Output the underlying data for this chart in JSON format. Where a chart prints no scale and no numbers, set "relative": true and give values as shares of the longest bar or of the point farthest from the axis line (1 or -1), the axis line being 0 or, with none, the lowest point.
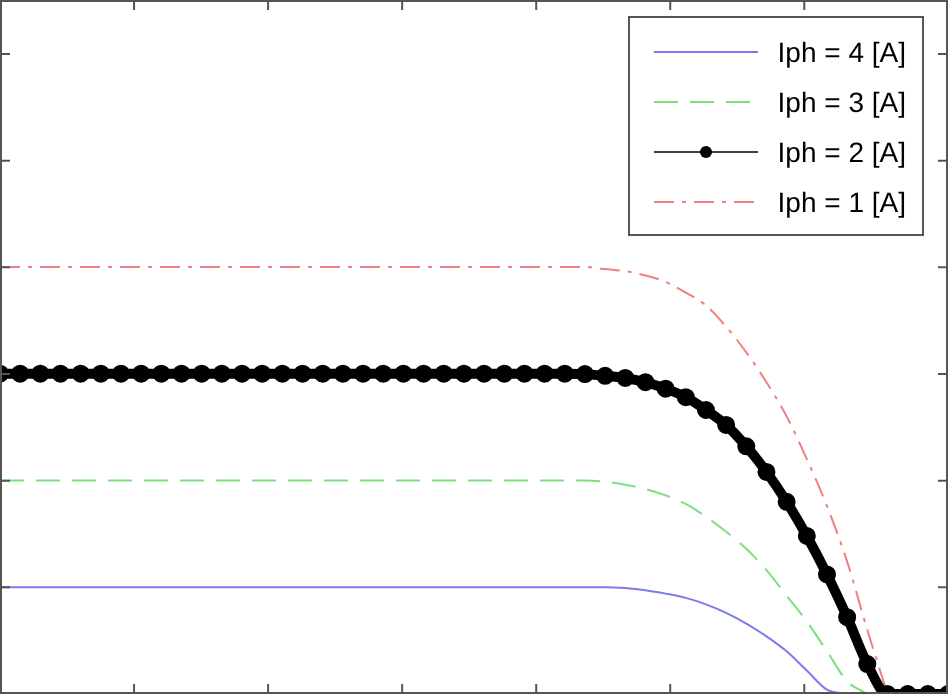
{
  "chart_data": {
    "type": "line",
    "relative": true,
    "tick_labels": false,
    "legend": "top right",
    "categories": [
      null,
      null,
      null,
      null,
      null,
      null,
      null,
      null,
      null,
      null,
      null,
      null,
      null,
      null,
      null,
      null,
      null,
      null,
      null,
      null,
      null,
      null,
      null,
      null,
      null,
      null,
      null,
      null,
      null,
      null,
      null,
      null,
      null,
      null,
      null,
      null,
      null,
      null,
      null,
      null,
      null,
      null,
      null,
      null,
      null,
      null,
      null,
      null
    ],
    "series": [
      {
        "name": "Iph = 4 [A]",
        "color": "#7b7bef",
        "line_style": "solid",
        "values": [
          0.25,
          0.25,
          0.25,
          0.25,
          0.25,
          0.25,
          0.25,
          0.25,
          0.25,
          0.25,
          0.25,
          0.25,
          0.25,
          0.25,
          0.25,
          0.25,
          0.25,
          0.25,
          0.25,
          0.25,
          0.25,
          0.25,
          0.25,
          0.25,
          0.25,
          0.25,
          0.25,
          0.25,
          0.25,
          0.25,
          0.25,
          0.248,
          0.243,
          0.235,
          0.225,
          0.21,
          0.19,
          0.165,
          0.135,
          0.1,
          0.055,
          0.01,
          0,
          null,
          null,
          null,
          null,
          null
        ]
      },
      {
        "name": "Iph = 3 [A]",
        "color": "#7fdf7f",
        "line_style": "dashed",
        "values": [
          0.5,
          0.5,
          0.5,
          0.5,
          0.5,
          0.5,
          0.5,
          0.5,
          0.5,
          0.5,
          0.5,
          0.5,
          0.5,
          0.5,
          0.5,
          0.5,
          0.5,
          0.5,
          0.5,
          0.5,
          0.5,
          0.5,
          0.5,
          0.5,
          0.5,
          0.5,
          0.5,
          0.5,
          0.5,
          0.5,
          0.497,
          0.49,
          0.48,
          0.465,
          0.445,
          0.415,
          0.38,
          0.34,
          0.29,
          0.23,
          0.17,
          0.1,
          0.03,
          0,
          null,
          null,
          null,
          null
        ]
      },
      {
        "name": "Iph = 2 [A]",
        "color": "#000000",
        "line_style": "solid",
        "marker": "circle",
        "values": [
          0.75,
          0.75,
          0.75,
          0.75,
          0.75,
          0.75,
          0.75,
          0.75,
          0.75,
          0.75,
          0.75,
          0.75,
          0.75,
          0.75,
          0.75,
          0.75,
          0.75,
          0.75,
          0.75,
          0.75,
          0.75,
          0.75,
          0.75,
          0.75,
          0.75,
          0.75,
          0.75,
          0.75,
          0.75,
          0.749,
          0.745,
          0.74,
          0.73,
          0.715,
          0.695,
          0.665,
          0.63,
          0.58,
          0.52,
          0.45,
          0.37,
          0.28,
          0.18,
          0.07,
          0,
          0,
          0,
          0
        ]
      },
      {
        "name": "Iph = 1 [A]",
        "color": "#f08080",
        "line_style": "dashdot",
        "values": [
          1,
          1,
          1,
          1,
          1,
          1,
          1,
          1,
          1,
          1,
          1,
          1,
          1,
          1,
          1,
          1,
          1,
          1,
          1,
          1,
          1,
          1,
          1,
          1,
          1,
          1,
          1,
          1,
          1,
          1,
          0.995,
          0.99,
          0.98,
          0.965,
          0.94,
          0.91,
          0.86,
          0.8,
          0.73,
          0.65,
          0.55,
          0.44,
          0.31,
          0.15,
          0,
          null,
          null,
          null
        ]
      }
    ]
  }
}
